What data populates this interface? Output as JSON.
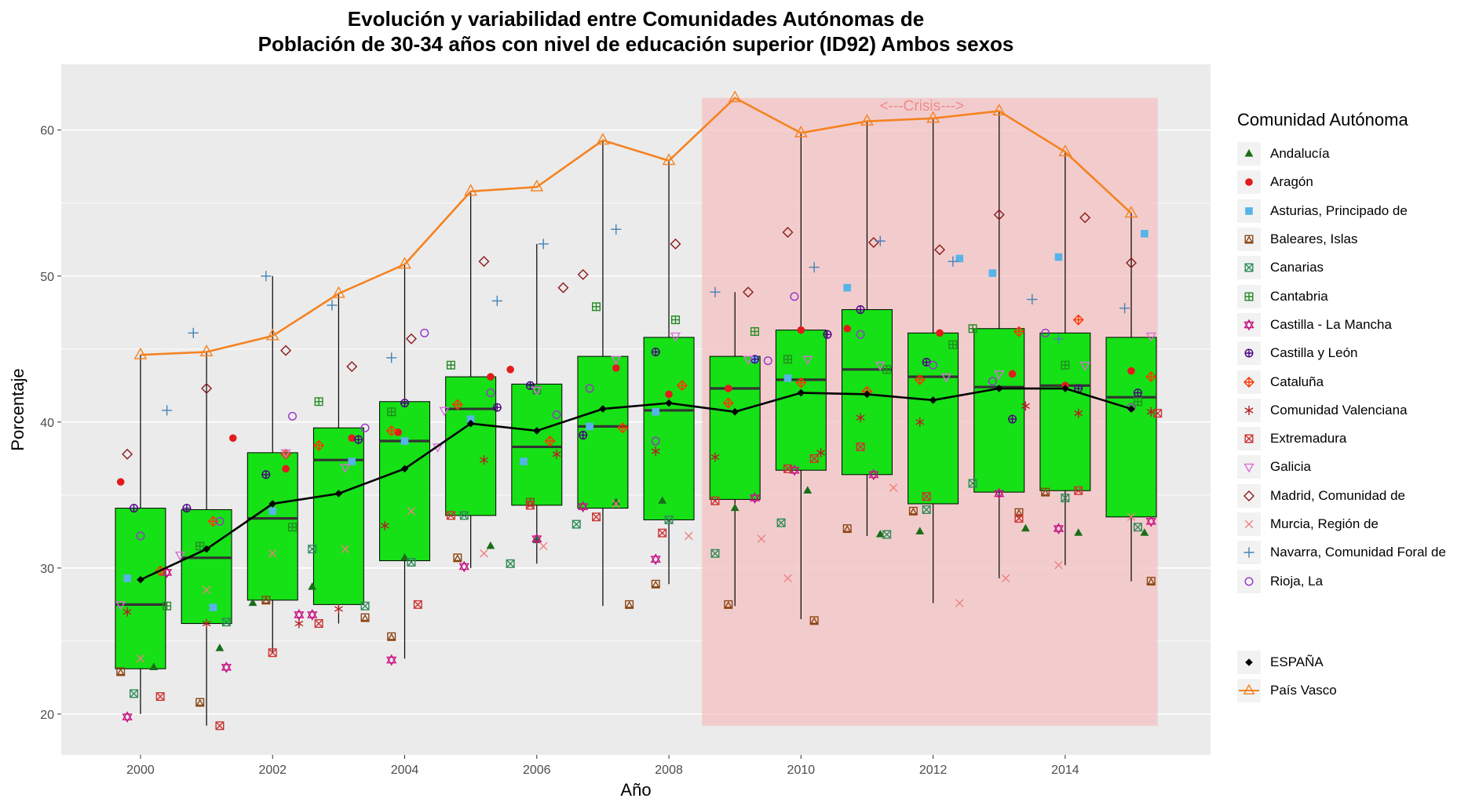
{
  "title": {
    "line1": "Evolución y variabilidad entre Comunidades Autónomas de",
    "line2": "Población de 30-34 años con nivel de educación superior (ID92) Ambos sexos"
  },
  "annotation": "<---Crisis--->",
  "legend": {
    "title": "Comunidad Autónoma",
    "items": [
      {
        "name": "Andalucía",
        "color": "#1a6e1a",
        "shape": "triangle-filled"
      },
      {
        "name": "Aragón",
        "color": "#e31a1c",
        "shape": "circle-filled"
      },
      {
        "name": "Asturias, Principado de",
        "color": "#56b4e9",
        "shape": "square-filled"
      },
      {
        "name": "Baleares, Islas",
        "color": "#8b4513",
        "shape": "square-triangle"
      },
      {
        "name": "Canarias",
        "color": "#2e8b57",
        "shape": "square-x"
      },
      {
        "name": "Cantabria",
        "color": "#228b22",
        "shape": "square-plus"
      },
      {
        "name": "Castilla - La Mancha",
        "color": "#c71585",
        "shape": "star-of-david"
      },
      {
        "name": "Castilla y León",
        "color": "#4b0082",
        "shape": "circle-plus"
      },
      {
        "name": "Cataluña",
        "color": "#ff3300",
        "shape": "diamond-plus"
      },
      {
        "name": "Comunidad Valenciana",
        "color": "#b22222",
        "shape": "asterisk"
      },
      {
        "name": "Extremadura",
        "color": "#cd3333",
        "shape": "square-x"
      },
      {
        "name": "Galicia",
        "color": "#da70d6",
        "shape": "triangle-down"
      },
      {
        "name": "Madrid, Comunidad de",
        "color": "#8b1a1a",
        "shape": "diamond"
      },
      {
        "name": "Murcia, Región de",
        "color": "#f08080",
        "shape": "x"
      },
      {
        "name": "Navarra, Comunidad Foral de",
        "color": "#4682b4",
        "shape": "plus"
      },
      {
        "name": "Rioja, La",
        "color": "#9932cc",
        "shape": "circle"
      }
    ],
    "extra": [
      {
        "name": "ESPAÑA",
        "color": "#000000",
        "shape": "diamond-filled"
      },
      {
        "name": "País Vasco",
        "color": "#f58220",
        "shape": "triangle"
      }
    ]
  },
  "chart_data": {
    "type": "box",
    "title": "Evolución y variabilidad entre Comunidades Autónomas de Población de 30-34 años con nivel de educación superior (ID92) Ambos sexos",
    "xlabel": "Año",
    "ylabel": "Porcentaje",
    "xlim": [
      1998.8,
      2016.2
    ],
    "ylim": [
      17.2,
      64.5
    ],
    "x_ticks": [
      2000,
      2002,
      2004,
      2006,
      2008,
      2010,
      2012,
      2014
    ],
    "y_ticks": [
      20,
      30,
      40,
      50,
      60
    ],
    "grid": true,
    "legend_position": "right",
    "crisis_shading": {
      "x_from": 2008.5,
      "x_to": 2015.4,
      "y_from": 19.2,
      "y_to": 62.2,
      "color": "#f4c2c2"
    },
    "box_fill": "#16e016",
    "boxes": [
      {
        "x": 2000,
        "min": 20.0,
        "q1": 23.1,
        "median": 27.5,
        "q3": 34.1,
        "max": 44.6
      },
      {
        "x": 2001,
        "min": 19.2,
        "q1": 26.2,
        "median": 30.7,
        "q3": 34.0,
        "max": 44.8
      },
      {
        "x": 2002,
        "min": 24.2,
        "q1": 27.8,
        "median": 33.4,
        "q3": 37.9,
        "max": 50.0
      },
      {
        "x": 2003,
        "min": 26.2,
        "q1": 27.5,
        "median": 37.4,
        "q3": 39.6,
        "max": 48.8
      },
      {
        "x": 2004,
        "min": 23.8,
        "q1": 30.5,
        "median": 38.7,
        "q3": 41.4,
        "max": 50.8
      },
      {
        "x": 2005,
        "min": 30.0,
        "q1": 33.6,
        "median": 40.9,
        "q3": 43.1,
        "max": 55.7
      },
      {
        "x": 2006,
        "min": 30.3,
        "q1": 34.3,
        "median": 38.3,
        "q3": 42.6,
        "max": 52.2
      },
      {
        "x": 2007,
        "min": 27.4,
        "q1": 34.1,
        "median": 39.7,
        "q3": 44.5,
        "max": 59.3
      },
      {
        "x": 2008,
        "min": 28.9,
        "q1": 33.3,
        "median": 40.8,
        "q3": 45.8,
        "max": 57.9
      },
      {
        "x": 2009,
        "min": 27.4,
        "q1": 34.7,
        "median": 42.3,
        "q3": 44.5,
        "max": 48.9
      },
      {
        "x": 2010,
        "min": 26.5,
        "q1": 36.7,
        "median": 42.9,
        "q3": 46.3,
        "max": 59.8
      },
      {
        "x": 2011,
        "min": 32.2,
        "q1": 36.4,
        "median": 43.6,
        "q3": 47.7,
        "max": 60.6
      },
      {
        "x": 2012,
        "min": 27.6,
        "q1": 34.4,
        "median": 43.1,
        "q3": 46.1,
        "max": 60.8
      },
      {
        "x": 2013,
        "min": 29.3,
        "q1": 35.2,
        "median": 42.4,
        "q3": 46.4,
        "max": 61.3
      },
      {
        "x": 2014,
        "min": 30.2,
        "q1": 35.3,
        "median": 42.5,
        "q3": 46.1,
        "max": 58.5
      },
      {
        "x": 2015,
        "min": 29.1,
        "q1": 33.5,
        "median": 41.7,
        "q3": 45.8,
        "max": 54.3
      }
    ],
    "lines": [
      {
        "name": "ESPAÑA",
        "color": "#000000",
        "shape": "diamond-filled",
        "x": [
          2000,
          2001,
          2002,
          2003,
          2004,
          2005,
          2006,
          2007,
          2008,
          2009,
          2010,
          2011,
          2012,
          2013,
          2014,
          2015
        ],
        "y": [
          29.2,
          31.3,
          34.4,
          35.1,
          36.8,
          39.9,
          39.4,
          40.9,
          41.3,
          40.7,
          42.0,
          41.9,
          41.5,
          42.3,
          42.3,
          40.9
        ]
      },
      {
        "name": "País Vasco",
        "color": "#f58220",
        "shape": "triangle",
        "x": [
          2000,
          2001,
          2002,
          2003,
          2004,
          2005,
          2006,
          2007,
          2008,
          2009,
          2010,
          2011,
          2012,
          2013,
          2014,
          2015
        ],
        "y": [
          44.6,
          44.8,
          45.9,
          48.8,
          50.8,
          55.8,
          56.1,
          59.3,
          57.9,
          62.2,
          59.8,
          60.6,
          60.8,
          61.3,
          58.5,
          54.3
        ]
      }
    ],
    "points": [
      {
        "name": "Andalucía",
        "x": [
          2000.2,
          2001.2,
          2001.7,
          2002.6,
          2004.0,
          2005.3,
          2006.0,
          2007.2,
          2007.9,
          2009.0,
          2010.1,
          2011.2,
          2011.8,
          2013.4,
          2014.2,
          2015.2
        ],
        "y": [
          23.2,
          24.5,
          27.6,
          28.7,
          30.7,
          31.5,
          31.9,
          34.5,
          34.6,
          34.1,
          35.3,
          32.3,
          32.5,
          32.7,
          32.4,
          32.4
        ]
      },
      {
        "name": "Aragón",
        "x": [
          1999.7,
          2001.4,
          2002.2,
          2003.2,
          2003.9,
          2005.3,
          2005.6,
          2007.2,
          2008.0,
          2008.9,
          2010.0,
          2010.7,
          2012.1,
          2013.2,
          2014.0,
          2015.0
        ],
        "y": [
          35.9,
          38.9,
          36.8,
          38.9,
          39.3,
          43.1,
          43.6,
          43.7,
          41.9,
          42.3,
          46.3,
          46.4,
          46.1,
          43.3,
          42.5,
          43.5
        ]
      },
      {
        "name": "Asturias, Principado de",
        "x": [
          1999.8,
          2001.1,
          2002.0,
          2003.2,
          2004.0,
          2005.0,
          2005.8,
          2006.8,
          2007.8,
          2009.3,
          2009.8,
          2010.7,
          2012.4,
          2012.9,
          2013.9,
          2015.2
        ],
        "y": [
          29.3,
          27.3,
          33.9,
          37.3,
          38.7,
          40.2,
          37.3,
          39.7,
          40.7,
          44.3,
          43.0,
          49.2,
          51.2,
          50.2,
          51.3,
          52.9
        ]
      },
      {
        "name": "Baleares, Islas",
        "x": [
          1999.7,
          2000.9,
          2001.9,
          2003.4,
          2003.8,
          2004.8,
          2005.9,
          2007.4,
          2007.8,
          2008.9,
          2010.2,
          2010.7,
          2011.7,
          2013.3,
          2013.7,
          2015.3
        ],
        "y": [
          22.9,
          20.8,
          27.8,
          26.6,
          25.3,
          30.7,
          34.5,
          27.5,
          28.9,
          27.5,
          26.4,
          32.7,
          33.9,
          33.8,
          35.2,
          29.1
        ]
      },
      {
        "name": "Canarias",
        "x": [
          1999.9,
          2001.3,
          2002.6,
          2003.4,
          2004.1,
          2004.9,
          2005.6,
          2006.6,
          2008.0,
          2008.7,
          2009.7,
          2011.3,
          2011.9,
          2012.6,
          2014.0,
          2015.1
        ],
        "y": [
          21.4,
          26.3,
          31.3,
          27.4,
          30.4,
          33.6,
          30.3,
          33.0,
          33.3,
          31.0,
          33.1,
          32.3,
          34.0,
          35.8,
          34.8,
          32.8
        ]
      },
      {
        "name": "Cantabria",
        "x": [
          2000.4,
          2000.9,
          2002.3,
          2002.7,
          2003.8,
          2004.7,
          2006.0,
          2006.9,
          2008.1,
          2009.3,
          2009.8,
          2011.3,
          2012.3,
          2012.6,
          2014.0,
          2015.1
        ],
        "y": [
          27.4,
          31.5,
          32.8,
          41.4,
          40.7,
          43.9,
          42.2,
          47.9,
          47.0,
          46.2,
          44.3,
          43.6,
          45.3,
          46.4,
          43.9,
          41.4
        ]
      },
      {
        "name": "Castilla - La Mancha",
        "x": [
          1999.8,
          2000.4,
          2001.3,
          2002.4,
          2002.6,
          2003.8,
          2004.9,
          2006.0,
          2006.7,
          2007.8,
          2009.3,
          2009.9,
          2011.1,
          2013.0,
          2013.9,
          2015.3
        ],
        "y": [
          19.8,
          29.7,
          23.2,
          26.8,
          26.8,
          23.7,
          30.1,
          32.0,
          34.2,
          30.6,
          34.8,
          36.7,
          36.4,
          35.1,
          32.7,
          33.2
        ]
      },
      {
        "name": "Castilla y León",
        "x": [
          1999.9,
          2000.7,
          2001.9,
          2003.3,
          2004.0,
          2005.4,
          2005.9,
          2006.7,
          2007.8,
          2009.3,
          2010.4,
          2010.9,
          2011.9,
          2013.2,
          2014.2,
          2015.1
        ],
        "y": [
          34.1,
          34.1,
          36.4,
          38.8,
          41.3,
          41.0,
          42.5,
          39.1,
          44.8,
          44.3,
          46.0,
          47.7,
          44.1,
          40.2,
          42.3,
          42.0
        ]
      },
      {
        "name": "Cataluña",
        "x": [
          2000.3,
          2001.1,
          2002.2,
          2002.7,
          2003.8,
          2004.8,
          2006.2,
          2007.3,
          2008.2,
          2008.9,
          2010.0,
          2011.0,
          2011.8,
          2013.3,
          2014.2,
          2015.3
        ],
        "y": [
          29.8,
          33.2,
          37.8,
          38.4,
          39.4,
          41.2,
          38.7,
          39.6,
          42.5,
          41.3,
          42.7,
          42.1,
          42.9,
          46.2,
          47.0,
          43.1
        ]
      },
      {
        "name": "Comunidad Valenciana",
        "x": [
          1999.8,
          2001.0,
          2002.4,
          2003.0,
          2003.7,
          2005.2,
          2006.3,
          2007.8,
          2008.7,
          2010.3,
          2010.9,
          2011.8,
          2013.4,
          2014.2,
          2015.3
        ],
        "y": [
          27.0,
          26.2,
          26.2,
          27.2,
          32.9,
          37.4,
          37.8,
          38.0,
          37.6,
          37.9,
          40.3,
          40.0,
          41.1,
          40.6,
          40.7
        ]
      },
      {
        "name": "Extremadura",
        "x": [
          2000.3,
          2001.2,
          2002.0,
          2002.7,
          2004.2,
          2004.7,
          2005.9,
          2006.9,
          2007.9,
          2008.7,
          2009.8,
          2010.2,
          2010.9,
          2011.9,
          2013.3,
          2014.2,
          2015.4
        ],
        "y": [
          21.2,
          19.2,
          24.2,
          26.2,
          27.5,
          33.6,
          34.3,
          33.5,
          32.4,
          34.6,
          36.8,
          37.5,
          38.3,
          34.9,
          33.4,
          35.3,
          40.6
        ]
      },
      {
        "name": "Galicia",
        "x": [
          1999.7,
          2000.6,
          2002.2,
          2003.1,
          2004.5,
          2004.6,
          2006.0,
          2007.2,
          2008.1,
          2009.2,
          2010.1,
          2011.2,
          2012.2,
          2013.0,
          2014.3,
          2015.3
        ],
        "y": [
          27.5,
          30.9,
          37.9,
          36.9,
          38.3,
          40.8,
          42.2,
          44.3,
          45.9,
          44.3,
          44.3,
          43.9,
          43.1,
          43.3,
          43.9,
          45.9
        ]
      },
      {
        "name": "Madrid, Comunidad de",
        "x": [
          1999.8,
          2001.0,
          2002.2,
          2003.2,
          2004.1,
          2005.2,
          2006.4,
          2006.7,
          2008.1,
          2009.2,
          2009.8,
          2011.1,
          2012.1,
          2013.0,
          2014.3,
          2015.0
        ],
        "y": [
          37.8,
          42.3,
          44.9,
          43.8,
          45.7,
          51.0,
          49.2,
          50.1,
          52.2,
          48.9,
          53.0,
          52.3,
          51.8,
          54.2,
          54.0,
          50.9
        ]
      },
      {
        "name": "Murcia, Región de",
        "x": [
          2000.0,
          2001.0,
          2002.0,
          2003.1,
          2004.1,
          2005.2,
          2006.1,
          2007.2,
          2008.3,
          2009.4,
          2009.8,
          2011.4,
          2012.4,
          2013.1,
          2013.9,
          2015.0
        ],
        "y": [
          23.8,
          28.5,
          31.0,
          31.3,
          33.9,
          31.0,
          31.5,
          34.4,
          32.2,
          32.0,
          29.3,
          35.5,
          27.6,
          29.3,
          30.2,
          33.5
        ]
      },
      {
        "name": "Navarra, Comunidad Foral de",
        "x": [
          2000.4,
          2000.8,
          2001.9,
          2002.9,
          2003.8,
          2005.4,
          2006.1,
          2007.2,
          2008.7,
          2010.2,
          2011.2,
          2012.3,
          2013.5,
          2013.9,
          2014.9
        ],
        "y": [
          40.8,
          46.1,
          50.0,
          48.0,
          44.4,
          48.3,
          52.2,
          53.2,
          48.9,
          50.6,
          52.4,
          51.0,
          48.4,
          45.7,
          47.8
        ]
      },
      {
        "name": "Rioja, La",
        "x": [
          2000.0,
          2001.2,
          2002.3,
          2003.4,
          2004.3,
          2005.3,
          2006.3,
          2006.8,
          2007.8,
          2009.5,
          2009.9,
          2010.9,
          2012.0,
          2012.9,
          2013.7,
          2015.0
        ],
        "y": [
          32.2,
          33.2,
          40.4,
          39.6,
          46.1,
          42.0,
          40.5,
          42.3,
          38.7,
          44.2,
          48.6,
          46.0,
          43.9,
          42.8,
          46.1,
          41.0
        ]
      }
    ]
  }
}
